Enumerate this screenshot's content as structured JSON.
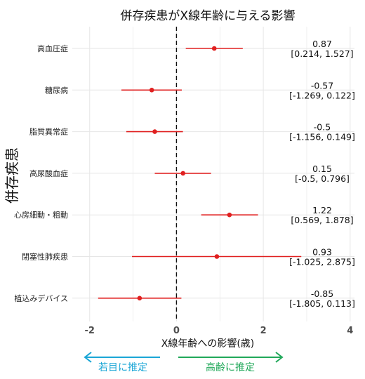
{
  "chart_data": {
    "type": "forest",
    "title": "併存疾患がX線年齢に与える影響",
    "xlabel": "X線年齢への影響(歳)",
    "ylabel": "併存疾患",
    "xlim": [
      -2.4,
      4.1
    ],
    "xticks": [
      -2,
      0,
      2,
      4
    ],
    "reference_line": 0,
    "grid": true,
    "rows": [
      {
        "label": "高血圧症",
        "estimate": 0.87,
        "ci": [
          0.214,
          1.527
        ],
        "estimate_text": "0.87",
        "ci_text": "[0.214, 1.527]"
      },
      {
        "label": "糖尿病",
        "estimate": -0.57,
        "ci": [
          -1.269,
          0.122
        ],
        "estimate_text": "-0.57",
        "ci_text": "[-1.269, 0.122]"
      },
      {
        "label": "脂質異常症",
        "estimate": -0.5,
        "ci": [
          -1.156,
          0.149
        ],
        "estimate_text": "-0.5",
        "ci_text": "[-1.156, 0.149]"
      },
      {
        "label": "高尿酸血症",
        "estimate": 0.15,
        "ci": [
          -0.5,
          0.796
        ],
        "estimate_text": "0.15",
        "ci_text": "[-0.5, 0.796]"
      },
      {
        "label": "心房細動・粗動",
        "estimate": 1.22,
        "ci": [
          0.569,
          1.878
        ],
        "estimate_text": "1.22",
        "ci_text": "[0.569, 1.878]"
      },
      {
        "label": "閉塞性肺疾患",
        "estimate": 0.93,
        "ci": [
          -1.025,
          2.875
        ],
        "estimate_text": "0.93",
        "ci_text": "[-1.025, 2.875]"
      },
      {
        "label": "植込みデバイス",
        "estimate": -0.85,
        "ci": [
          -1.805,
          0.113
        ],
        "estimate_text": "-0.85",
        "ci_text": "[-1.805, 0.113]"
      }
    ],
    "direction_labels": {
      "left": "若目に推定",
      "right": "高齢に推定"
    },
    "colors": {
      "point": "#e02020",
      "ci_line": "#e02020",
      "grid": "#e6e6e6",
      "ref_line": "#111111",
      "left_arrow": "#1aa6d6",
      "right_arrow": "#21a85a"
    }
  }
}
